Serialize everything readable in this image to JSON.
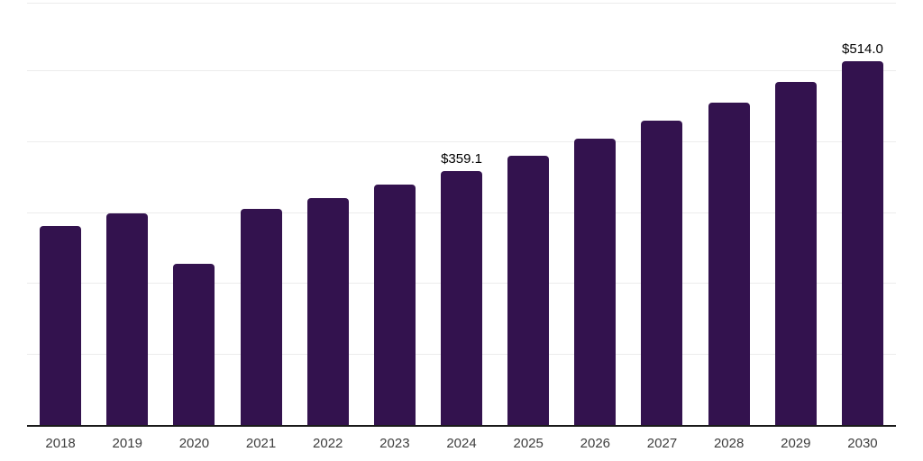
{
  "chart_data": {
    "type": "bar",
    "title": "",
    "xlabel": "",
    "ylabel": "",
    "categories": [
      "2018",
      "2019",
      "2020",
      "2021",
      "2022",
      "2023",
      "2024",
      "2025",
      "2026",
      "2027",
      "2028",
      "2029",
      "2030"
    ],
    "values": [
      282,
      299,
      229,
      306,
      321,
      340,
      359.1,
      381.2,
      404.7,
      429.6,
      456.1,
      484.2,
      514.0
    ],
    "data_labels": [
      "",
      "",
      "",
      "",
      "",
      "",
      "$359.1",
      "",
      "",
      "",
      "",
      "",
      "$514.0"
    ],
    "ylim": [
      0,
      595
    ],
    "gridline_values": [
      100,
      200,
      300,
      400,
      500
    ],
    "grid": "horizontal",
    "legend": "none",
    "colors": {
      "bar": "#33124E",
      "gridline": "#ececec",
      "axis_line": "#1a1a1a",
      "tick_label": "#3d3d3d",
      "value_label": "#000000",
      "background": "#ffffff"
    }
  }
}
